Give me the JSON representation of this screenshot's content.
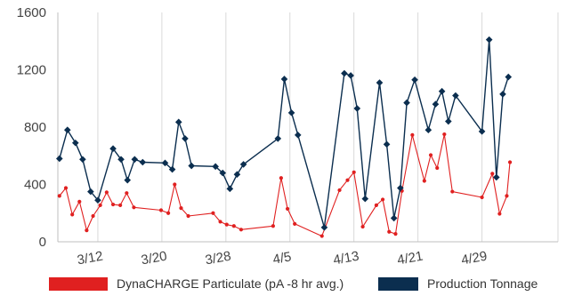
{
  "chart_data": {
    "type": "line",
    "y_ticks": [
      0,
      400,
      800,
      1200,
      1600
    ],
    "ylim": [
      0,
      1600
    ],
    "x_tick_labels": [
      "3/12",
      "3/20",
      "3/28",
      "4/5",
      "4/13",
      "4/21",
      "4/29"
    ],
    "x_tick_days": [
      11,
      19,
      27,
      35,
      43,
      51,
      59
    ],
    "xlim": [
      6,
      68.5
    ],
    "grid": "vertical",
    "legend_position": "bottom",
    "series": [
      {
        "name": "Production Tonnage",
        "color": "#0b2e4f",
        "marker": "diamond",
        "points": [
          [
            6.2,
            580
          ],
          [
            7.2,
            780
          ],
          [
            8.2,
            690
          ],
          [
            9.1,
            575
          ],
          [
            10.1,
            350
          ],
          [
            11.0,
            290
          ],
          [
            12.9,
            650
          ],
          [
            13.9,
            575
          ],
          [
            14.7,
            430
          ],
          [
            15.6,
            575
          ],
          [
            16.6,
            555
          ],
          [
            19.4,
            550
          ],
          [
            20.3,
            505
          ],
          [
            21.1,
            835
          ],
          [
            21.9,
            720
          ],
          [
            22.7,
            530
          ],
          [
            25.7,
            525
          ],
          [
            26.6,
            480
          ],
          [
            27.5,
            370
          ],
          [
            28.4,
            470
          ],
          [
            29.2,
            540
          ],
          [
            33.5,
            720
          ],
          [
            34.3,
            1135
          ],
          [
            35.2,
            900
          ],
          [
            36.0,
            745
          ],
          [
            39.3,
            100
          ],
          [
            41.8,
            1175
          ],
          [
            42.6,
            1160
          ],
          [
            43.4,
            930
          ],
          [
            44.4,
            300
          ],
          [
            46.2,
            1110
          ],
          [
            47.1,
            680
          ],
          [
            48.0,
            165
          ],
          [
            48.8,
            375
          ],
          [
            49.6,
            970
          ],
          [
            50.6,
            1130
          ],
          [
            52.3,
            780
          ],
          [
            53.2,
            960
          ],
          [
            54.0,
            1050
          ],
          [
            54.8,
            840
          ],
          [
            55.7,
            1020
          ],
          [
            59.0,
            770
          ],
          [
            59.9,
            1410
          ],
          [
            60.8,
            450
          ],
          [
            61.6,
            1030
          ],
          [
            62.3,
            1150
          ]
        ]
      },
      {
        "name": "DynaCHARGE Particulate (pA -8 hr avg.)",
        "color": "#e02020",
        "marker": "circle",
        "points": [
          [
            6.2,
            320
          ],
          [
            7.0,
            375
          ],
          [
            7.8,
            190
          ],
          [
            8.7,
            280
          ],
          [
            9.6,
            80
          ],
          [
            10.4,
            180
          ],
          [
            11.3,
            255
          ],
          [
            12.1,
            345
          ],
          [
            12.9,
            260
          ],
          [
            13.8,
            255
          ],
          [
            14.6,
            340
          ],
          [
            15.5,
            240
          ],
          [
            18.9,
            220
          ],
          [
            19.8,
            200
          ],
          [
            20.6,
            400
          ],
          [
            21.4,
            235
          ],
          [
            22.3,
            180
          ],
          [
            25.4,
            200
          ],
          [
            26.3,
            140
          ],
          [
            27.1,
            120
          ],
          [
            28.0,
            110
          ],
          [
            28.9,
            85
          ],
          [
            32.9,
            110
          ],
          [
            33.9,
            445
          ],
          [
            34.7,
            230
          ],
          [
            35.6,
            125
          ],
          [
            39.0,
            40
          ],
          [
            41.2,
            360
          ],
          [
            42.2,
            430
          ],
          [
            43.0,
            485
          ],
          [
            44.1,
            105
          ],
          [
            45.8,
            255
          ],
          [
            46.6,
            295
          ],
          [
            47.4,
            70
          ],
          [
            48.2,
            55
          ],
          [
            49.0,
            355
          ],
          [
            50.3,
            745
          ],
          [
            51.8,
            425
          ],
          [
            52.6,
            605
          ],
          [
            53.4,
            515
          ],
          [
            54.3,
            750
          ],
          [
            55.3,
            350
          ],
          [
            59.0,
            310
          ],
          [
            60.3,
            475
          ],
          [
            61.2,
            195
          ],
          [
            62.1,
            320
          ],
          [
            62.5,
            555
          ]
        ]
      }
    ]
  },
  "legend": [
    {
      "label": "DynaCHARGE Particulate (pA -8 hr avg.)",
      "color": "#e02020"
    },
    {
      "label": "Production Tonnage",
      "color": "#0b2e4f"
    }
  ]
}
